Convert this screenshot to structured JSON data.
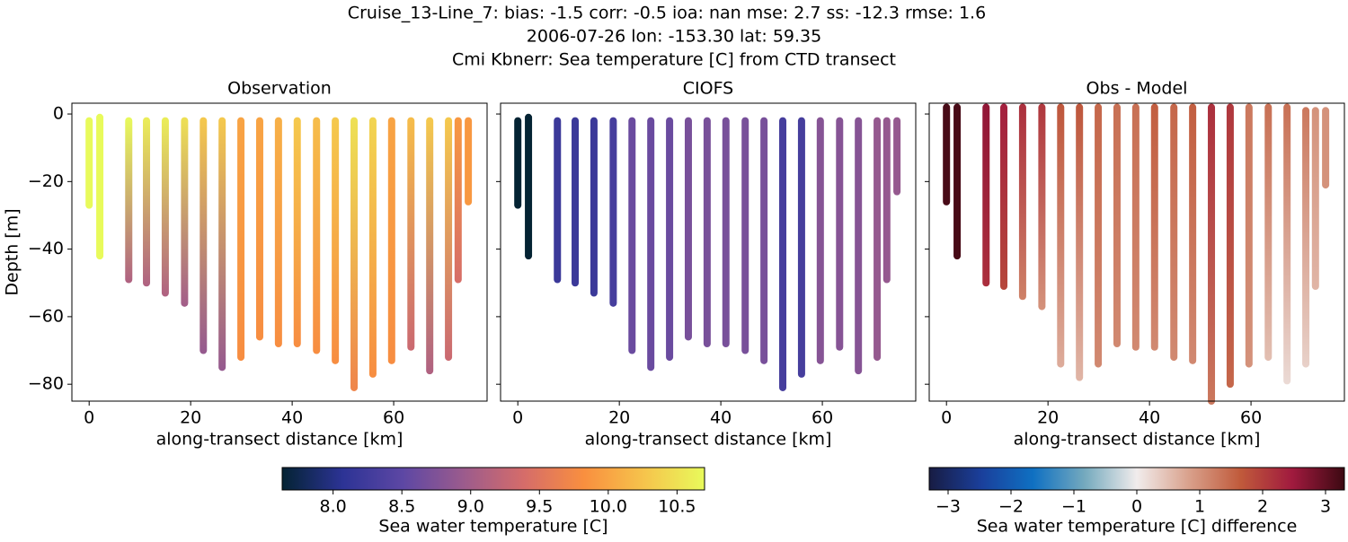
{
  "suptitle": [
    "Cruise_13-Line_7: bias: -1.5  corr: -0.5  ioa: nan  mse: 2.7  ss: -12.3  rmse: 1.6",
    "2006-07-26 lon: -153.30 lat: 59.35",
    "Cmi Kbnerr: Sea temperature [C] from CTD transect"
  ],
  "colormaps": {
    "thermal": [
      "#042333",
      "#2c3395",
      "#5d47a4",
      "#9b5b8d",
      "#d56c6a",
      "#f98f3f",
      "#f6c44c",
      "#e8fa5b"
    ],
    "balance": [
      "#181c43",
      "#1a3f9b",
      "#0f70c2",
      "#75aabe",
      "#f1ecec",
      "#d9a18c",
      "#c05a3b",
      "#a01a3e",
      "#3c0912"
    ]
  },
  "colorbars": [
    {
      "label": "Sea water temperature [C]",
      "lim": [
        7.63,
        10.7
      ],
      "colormap": "thermal",
      "ticks": [
        {
          "value": 8,
          "label": "8.0"
        },
        8.5,
        {
          "value": 9,
          "label": "9.0"
        },
        9.5,
        {
          "value": 10,
          "label": "10.0"
        },
        10.5
      ]
    },
    {
      "label": "Sea water temperature [C] difference",
      "lim": [
        -3.3,
        3.3
      ],
      "colormap": "balance",
      "ticks": [
        {
          "value": -3,
          "label": "−3"
        },
        {
          "value": -2,
          "label": "−2"
        },
        {
          "value": -1,
          "label": "−1"
        },
        0,
        1,
        2,
        3
      ]
    }
  ],
  "chart_data": [
    {
      "type": "profiles",
      "title": "Observation",
      "x_label": "along-transect distance [km]",
      "y_label": "Depth [m]",
      "colorbar": 0,
      "xlim": [
        -3.4,
        78.4
      ],
      "ylim": [
        -85,
        3.2
      ],
      "xticks": [
        0,
        20,
        40,
        60
      ],
      "yticks": [
        0,
        {
          "value": -20,
          "label": "−20"
        },
        {
          "value": -40,
          "label": "−40"
        },
        {
          "value": -60,
          "label": "−60"
        },
        {
          "value": -80,
          "label": "−80"
        }
      ],
      "x": [
        0,
        2.1,
        7.8,
        11.3,
        15,
        18.8,
        22.5,
        26.2,
        29.9,
        33.6,
        37.3,
        41,
        44.8,
        48.5,
        52.2,
        55.9,
        59.6,
        63.4,
        67.1,
        70.8,
        72.7,
        74.7
      ],
      "top": [
        -2,
        -1,
        -2,
        -2,
        -2,
        -2,
        -2,
        -2,
        -2,
        -2,
        -2,
        -2,
        -2,
        -2,
        -2,
        -2,
        -2,
        -2,
        -2,
        -2,
        -2,
        -2
      ],
      "bottom": [
        -27,
        -42,
        -49,
        -50,
        -53,
        -56,
        -70,
        -75,
        -72,
        -66,
        -68,
        -68,
        -70,
        -73,
        -81,
        -77,
        -73,
        -69,
        -76,
        -72,
        -49,
        -26
      ],
      "top_value": [
        10.8,
        10.8,
        10.8,
        10.6,
        10.6,
        10.5,
        10.3,
        10.3,
        10.0,
        10.0,
        10.1,
        10.3,
        10.2,
        10.3,
        10.5,
        10.4,
        10.0,
        10.2,
        10.3,
        10.3,
        9.9,
        9.9
      ],
      "bottom_value": [
        10.8,
        10.8,
        9.1,
        9.1,
        9.1,
        9.0,
        8.9,
        8.9,
        9.8,
        9.8,
        9.8,
        9.8,
        9.8,
        9.8,
        9.7,
        9.8,
        9.8,
        9.3,
        9.1,
        9.3,
        9.4,
        9.9
      ]
    },
    {
      "type": "profiles",
      "title": "CIOFS",
      "x_label": "along-transect distance [km]",
      "colorbar": 0,
      "xlim": [
        -3.4,
        78.4
      ],
      "ylim": [
        -85,
        3.2
      ],
      "xticks": [
        0,
        20,
        40,
        60
      ],
      "yticks_marks": [
        0,
        -20,
        -40,
        -60,
        -80
      ],
      "x": [
        0,
        2.1,
        7.8,
        11.3,
        15,
        18.8,
        22.5,
        26.2,
        29.9,
        33.6,
        37.3,
        41,
        44.8,
        48.5,
        52.2,
        55.9,
        59.6,
        63.4,
        67.1,
        70.8,
        72.7,
        74.7
      ],
      "top": [
        -2,
        -1,
        -2,
        -2,
        -2,
        -2,
        -2,
        -2,
        -2,
        -2,
        -2,
        -2,
        -2,
        -2,
        -2,
        -2,
        -2,
        -2,
        -2,
        -2,
        -2,
        -2
      ],
      "bottom": [
        -27,
        -42,
        -49,
        -50,
        -53,
        -56,
        -70,
        -75,
        -72,
        -66,
        -68,
        -68,
        -70,
        -73,
        -81,
        -77,
        -73,
        -69,
        -76,
        -72,
        -49,
        -23
      ],
      "top_value": [
        7.6,
        7.6,
        8.2,
        8.2,
        8.2,
        8.3,
        8.6,
        8.6,
        8.6,
        8.7,
        8.7,
        8.7,
        8.7,
        8.7,
        8.3,
        8.3,
        8.8,
        8.8,
        8.8,
        8.9,
        8.9,
        8.9
      ],
      "bottom_value": [
        7.6,
        7.6,
        8.2,
        8.2,
        8.2,
        8.3,
        8.6,
        8.6,
        8.6,
        8.7,
        8.7,
        8.7,
        8.7,
        8.7,
        8.3,
        8.3,
        8.8,
        8.8,
        8.8,
        8.9,
        8.9,
        8.9
      ]
    },
    {
      "type": "profiles",
      "title": "Obs - Model",
      "x_label": "along-transect distance [km]",
      "colorbar": 1,
      "xlim": [
        -3.4,
        78.4
      ],
      "ylim": [
        -85,
        3.2
      ],
      "xticks": [
        0,
        20,
        40,
        60
      ],
      "yticks_marks": [
        0,
        -20,
        -40,
        -60,
        -80
      ],
      "x": [
        0,
        2.1,
        7.8,
        11.3,
        15,
        18.8,
        22.5,
        26.2,
        29.9,
        33.6,
        37.3,
        41,
        44.8,
        48.5,
        52.2,
        55.9,
        59.6,
        63.4,
        67.1,
        70.8,
        72.7,
        74.7
      ],
      "top": [
        2,
        2,
        2,
        2,
        2,
        2,
        2,
        2,
        2,
        2,
        2,
        2,
        2,
        2,
        2,
        2,
        2,
        2,
        2,
        1,
        1,
        1
      ],
      "bottom": [
        -26,
        -42,
        -50,
        -51,
        -54,
        -57,
        -74,
        -78,
        -74,
        -68,
        -69,
        -69,
        -72,
        -73,
        -85,
        -80,
        -74,
        -72,
        -79,
        -74,
        -51,
        -21
      ],
      "top_value": [
        3.2,
        3.2,
        2.6,
        2.4,
        2.2,
        2.1,
        1.7,
        1.7,
        1.5,
        1.4,
        1.4,
        1.6,
        1.5,
        1.6,
        2.2,
        2.1,
        1.3,
        1.4,
        1.4,
        1.3,
        1.0,
        1.0
      ],
      "bottom_value": [
        3.2,
        3.2,
        2.2,
        1.9,
        1.2,
        1.0,
        0.7,
        0.6,
        1.1,
        1.1,
        1.1,
        1.1,
        1.1,
        1.1,
        1.3,
        1.5,
        1.0,
        0.5,
        0.2,
        0.3,
        0.6,
        1.0
      ]
    }
  ]
}
